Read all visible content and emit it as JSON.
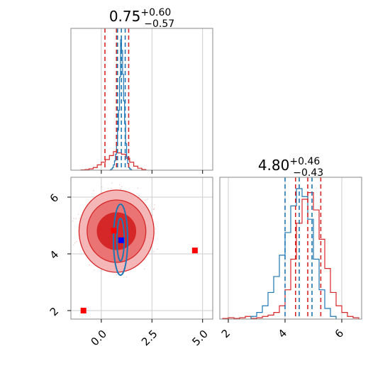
{
  "colors": {
    "red": "#d62728",
    "blue": "#1f77b4",
    "blue_marker": "#0000ff",
    "red_marker": "#ff0000",
    "grid": "#cccccc",
    "contour_fill": [
      "#f4b6b6",
      "#ea7474",
      "#d62728"
    ]
  },
  "chart_data": [
    {
      "type": "histogram",
      "panel": "marginal-param-1",
      "title": {
        "value": "0.75",
        "plus": "+0.60",
        "minus": "−0.57"
      },
      "xlim": [
        -1.5,
        5.5
      ],
      "xticks": [
        0.0,
        2.5,
        5.0
      ],
      "grid": true,
      "series": [
        {
          "color": "red",
          "bins": [
            -1.0,
            -0.8,
            -0.6,
            -0.4,
            -0.2,
            0.0,
            0.2,
            0.4,
            0.6,
            0.8,
            1.0,
            1.2,
            1.4,
            1.6,
            1.8,
            2.0,
            2.2
          ],
          "heights": [
            0.002,
            0.005,
            0.01,
            0.02,
            0.04,
            0.06,
            0.08,
            0.11,
            0.14,
            0.13,
            0.12,
            0.09,
            0.06,
            0.03,
            0.015,
            0.005
          ]
        },
        {
          "color": "blue",
          "bins": [
            0.4,
            0.45,
            0.5,
            0.55,
            0.6,
            0.65,
            0.7,
            0.75,
            0.8,
            0.85,
            0.9,
            0.95,
            1.0,
            1.05,
            1.1,
            1.15,
            1.2,
            1.25,
            1.3,
            1.35,
            1.4,
            1.45,
            1.5
          ],
          "heights": [
            0.0,
            0.004,
            0.01,
            0.02,
            0.04,
            0.07,
            0.12,
            0.2,
            0.3,
            0.45,
            0.7,
            0.98,
            0.9,
            0.72,
            0.52,
            0.35,
            0.2,
            0.1,
            0.05,
            0.02,
            0.01,
            0.004
          ]
        }
      ],
      "quantile_lines": [
        {
          "color": "red",
          "x": [
            0.18,
            0.75,
            1.35
          ]
        },
        {
          "color": "blue",
          "x": [
            0.8,
            0.99,
            1.18
          ]
        }
      ]
    },
    {
      "type": "contour-scatter",
      "panel": "joint-param-1-2",
      "xlim": [
        -1.5,
        5.5
      ],
      "ylim": [
        1.7,
        6.7
      ],
      "xticks": [
        0.0,
        2.5,
        5.0
      ],
      "yticks": [
        2,
        4,
        6
      ],
      "grid": true,
      "red_contour_center": [
        0.75,
        4.8
      ],
      "red_contour_radii": [
        {
          "rx": 1.85,
          "ry": 1.45
        },
        {
          "rx": 1.45,
          "ry": 1.1
        },
        {
          "rx": 0.95,
          "ry": 0.65
        }
      ],
      "blue_contour_center": [
        0.95,
        4.5
      ],
      "blue_contour_radii": [
        {
          "rx": 0.35,
          "ry": 1.25
        },
        {
          "rx": 0.18,
          "ry": 0.75
        }
      ],
      "markers": [
        {
          "color": "blue_marker",
          "x": 0.98,
          "y": 4.48
        },
        {
          "color": "red_marker",
          "x": 0.62,
          "y": 4.82
        },
        {
          "color": "red_marker",
          "x": 4.62,
          "y": 4.12
        },
        {
          "color": "red_marker",
          "x": -0.88,
          "y": 2.0
        }
      ]
    },
    {
      "type": "histogram",
      "panel": "marginal-param-2",
      "title": {
        "value": "4.80",
        "plus": "+0.46",
        "minus": "−0.43"
      },
      "xlim": [
        1.7,
        6.7
      ],
      "xticks": [
        2,
        4,
        6
      ],
      "grid": true,
      "series": [
        {
          "color": "red",
          "bins": [
            1.8,
            2.0,
            2.2,
            2.4,
            2.6,
            2.8,
            3.0,
            3.2,
            3.4,
            3.6,
            3.8,
            4.0,
            4.2,
            4.4,
            4.6,
            4.8,
            5.0,
            5.2,
            5.4,
            5.6,
            5.8,
            6.0,
            6.2,
            6.4,
            6.6
          ],
          "heights": [
            0.005,
            0.01,
            0.005,
            0.01,
            0.02,
            0.005,
            0.01,
            0.02,
            0.03,
            0.05,
            0.1,
            0.22,
            0.45,
            0.72,
            0.9,
            0.95,
            0.82,
            0.6,
            0.38,
            0.2,
            0.1,
            0.05,
            0.02,
            0.01
          ]
        },
        {
          "color": "blue",
          "bins": [
            2.8,
            3.0,
            3.2,
            3.4,
            3.6,
            3.8,
            4.0,
            4.2,
            4.4,
            4.6,
            4.8,
            5.0,
            5.2,
            5.4,
            5.6,
            5.8
          ],
          "heights": [
            0.02,
            0.05,
            0.1,
            0.2,
            0.32,
            0.48,
            0.65,
            0.85,
            0.98,
            0.92,
            0.75,
            0.45,
            0.22,
            0.08,
            0.02
          ]
        }
      ],
      "quantile_lines": [
        {
          "color": "red",
          "x": [
            4.37,
            4.8,
            5.26
          ]
        },
        {
          "color": "blue",
          "x": [
            4.0,
            4.5,
            4.95
          ]
        }
      ]
    }
  ]
}
